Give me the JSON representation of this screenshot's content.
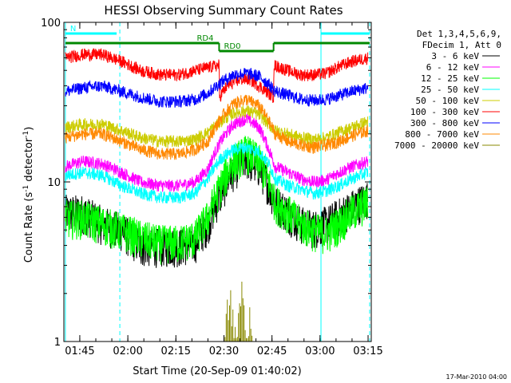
{
  "chart_data": {
    "type": "line",
    "title": "HESSI Observing Summary Count Rates",
    "xlabel": "Start Time (20-Sep-09 01:40:02)",
    "ylabel_main": "Count Rate (s",
    "ylabel_sup1": "-1",
    "ylabel_mid": " detector",
    "ylabel_sup2": "-1",
    "ylabel_end": ")",
    "yscale": "log",
    "ylim": [
      1,
      100
    ],
    "xlim_minutes": [
      100.03,
      196.0
    ],
    "y_ticks": [
      {
        "value": 1,
        "label": "1"
      },
      {
        "value": 10,
        "label": "10"
      },
      {
        "value": 100,
        "label": "100"
      }
    ],
    "x_ticks": [
      {
        "minutes": 105,
        "label": "01:45"
      },
      {
        "minutes": 120,
        "label": "02:00"
      },
      {
        "minutes": 135,
        "label": "02:15"
      },
      {
        "minutes": 150,
        "label": "02:30"
      },
      {
        "minutes": 165,
        "label": "02:45"
      },
      {
        "minutes": 180,
        "label": "03:00"
      },
      {
        "minutes": 195,
        "label": "03:15"
      }
    ],
    "legend_header": [
      "Det 1,3,4,5,6,9,",
      "FDecim 1, Att 0"
    ],
    "series": [
      {
        "name": "3 - 6 keV",
        "color": "#000000",
        "points": [
          [
            100.5,
            6.5
          ],
          [
            106,
            6.5
          ],
          [
            112,
            5.5
          ],
          [
            118,
            5.0
          ],
          [
            124,
            4.0
          ],
          [
            130,
            4.0
          ],
          [
            136,
            4.0
          ],
          [
            141,
            4.2
          ],
          [
            145,
            5.5
          ],
          [
            149,
            8.5
          ],
          [
            153,
            12.0
          ],
          [
            157,
            14.0
          ],
          [
            161,
            12.5
          ],
          [
            164,
            9.5
          ],
          [
            166,
            7.5
          ],
          [
            170,
            6.5
          ],
          [
            174,
            5.5
          ],
          [
            178,
            5.2
          ],
          [
            182,
            5.5
          ],
          [
            186,
            6.2
          ],
          [
            190,
            7.0
          ],
          [
            195,
            8.0
          ]
        ]
      },
      {
        "name": "6 - 12 keV",
        "color": "#ff00ff",
        "points": [
          [
            100.5,
            12.5
          ],
          [
            106,
            13.5
          ],
          [
            112,
            13.0
          ],
          [
            118,
            11.5
          ],
          [
            124,
            10.0
          ],
          [
            130,
            9.5
          ],
          [
            136,
            9.5
          ],
          [
            141,
            10.0
          ],
          [
            145,
            12.0
          ],
          [
            149,
            18.0
          ],
          [
            153,
            23.0
          ],
          [
            157,
            25.0
          ],
          [
            161,
            22.0
          ],
          [
            164,
            16.0
          ],
          [
            166,
            12.5
          ],
          [
            170,
            11.5
          ],
          [
            174,
            10.5
          ],
          [
            178,
            10.0
          ],
          [
            182,
            10.3
          ],
          [
            186,
            11.5
          ],
          [
            190,
            12.5
          ],
          [
            195,
            13.5
          ]
        ]
      },
      {
        "name": "12 - 25 keV",
        "color": "#00ff00",
        "points": [
          [
            100.5,
            6.0
          ],
          [
            106,
            6.0
          ],
          [
            112,
            5.5
          ],
          [
            118,
            5.0
          ],
          [
            124,
            4.5
          ],
          [
            130,
            4.2
          ],
          [
            136,
            4.2
          ],
          [
            141,
            4.5
          ],
          [
            145,
            6.0
          ],
          [
            149,
            9.5
          ],
          [
            153,
            13.5
          ],
          [
            157,
            15.5
          ],
          [
            161,
            13.5
          ],
          [
            164,
            10.0
          ],
          [
            166,
            7.5
          ],
          [
            170,
            6.5
          ],
          [
            174,
            5.5
          ],
          [
            178,
            5.0
          ],
          [
            182,
            4.8
          ],
          [
            186,
            5.5
          ],
          [
            190,
            6.5
          ],
          [
            195,
            7.5
          ]
        ]
      },
      {
        "name": "25 - 50 keV",
        "color": "#00ffff",
        "points": [
          [
            100.5,
            11.0
          ],
          [
            106,
            11.5
          ],
          [
            112,
            11.0
          ],
          [
            118,
            9.5
          ],
          [
            124,
            8.5
          ],
          [
            130,
            8.0
          ],
          [
            136,
            8.0
          ],
          [
            141,
            8.5
          ],
          [
            145,
            10.5
          ],
          [
            149,
            14.0
          ],
          [
            153,
            16.0
          ],
          [
            157,
            16.5
          ],
          [
            161,
            15.5
          ],
          [
            164,
            13.0
          ],
          [
            166,
            10.5
          ],
          [
            170,
            9.5
          ],
          [
            174,
            9.0
          ],
          [
            178,
            8.5
          ],
          [
            182,
            8.8
          ],
          [
            186,
            9.5
          ],
          [
            190,
            10.5
          ],
          [
            195,
            11.5
          ]
        ]
      },
      {
        "name": "50 - 100 keV",
        "color": "#cccc00",
        "points": [
          [
            100.5,
            22.0
          ],
          [
            106,
            23.0
          ],
          [
            112,
            23.0
          ],
          [
            118,
            21.0
          ],
          [
            124,
            19.0
          ],
          [
            130,
            18.0
          ],
          [
            136,
            18.0
          ],
          [
            141,
            18.5
          ],
          [
            145,
            20.5
          ],
          [
            149,
            24.0
          ],
          [
            153,
            27.0
          ],
          [
            157,
            28.0
          ],
          [
            161,
            26.5
          ],
          [
            164,
            23.0
          ],
          [
            166,
            21.0
          ],
          [
            170,
            20.0
          ],
          [
            174,
            19.0
          ],
          [
            178,
            18.5
          ],
          [
            182,
            19.0
          ],
          [
            186,
            20.5
          ],
          [
            190,
            22.0
          ],
          [
            195,
            24.0
          ]
        ]
      },
      {
        "name": "100 - 300 keV",
        "color": "#ff0000",
        "points": [
          [
            100.5,
            60.0
          ],
          [
            106,
            63.0
          ],
          [
            112,
            63.0
          ],
          [
            118,
            57.0
          ],
          [
            124,
            50.0
          ],
          [
            130,
            47.0
          ],
          [
            136,
            47.0
          ],
          [
            141,
            50.0
          ],
          [
            148.5,
            54.0
          ],
          [
            148.6,
            34.0
          ],
          [
            151,
            40.0
          ],
          [
            155,
            44.0
          ],
          [
            158,
            44.0
          ],
          [
            161,
            40.0
          ],
          [
            165.5,
            34.0
          ],
          [
            165.6,
            54.0
          ],
          [
            170,
            50.0
          ],
          [
            174,
            47.0
          ],
          [
            178,
            47.0
          ],
          [
            182,
            48.0
          ],
          [
            186,
            53.0
          ],
          [
            190,
            57.0
          ],
          [
            195,
            60.0
          ]
        ]
      },
      {
        "name": "300 - 800 keV",
        "color": "#0000ff",
        "points": [
          [
            100.5,
            37.0
          ],
          [
            106,
            39.0
          ],
          [
            112,
            40.0
          ],
          [
            118,
            37.0
          ],
          [
            124,
            34.0
          ],
          [
            130,
            32.0
          ],
          [
            136,
            32.0
          ],
          [
            141,
            33.0
          ],
          [
            145,
            36.0
          ],
          [
            149,
            42.0
          ],
          [
            153,
            47.0
          ],
          [
            157,
            48.0
          ],
          [
            161,
            46.0
          ],
          [
            164,
            41.0
          ],
          [
            166,
            37.0
          ],
          [
            170,
            35.0
          ],
          [
            174,
            33.0
          ],
          [
            178,
            32.5
          ],
          [
            182,
            33.0
          ],
          [
            186,
            35.0
          ],
          [
            190,
            37.0
          ],
          [
            195,
            39.0
          ]
        ]
      },
      {
        "name": "800 - 7000 keV",
        "color": "#ff8800",
        "points": [
          [
            100.5,
            19.0
          ],
          [
            106,
            20.0
          ],
          [
            112,
            20.0
          ],
          [
            118,
            18.0
          ],
          [
            124,
            16.0
          ],
          [
            130,
            15.0
          ],
          [
            136,
            15.0
          ],
          [
            141,
            16.0
          ],
          [
            145,
            18.0
          ],
          [
            149,
            25.0
          ],
          [
            153,
            31.0
          ],
          [
            157,
            33.0
          ],
          [
            161,
            30.0
          ],
          [
            164,
            24.0
          ],
          [
            166,
            20.0
          ],
          [
            170,
            18.0
          ],
          [
            174,
            17.0
          ],
          [
            178,
            16.5
          ],
          [
            182,
            17.0
          ],
          [
            186,
            18.0
          ],
          [
            190,
            19.5
          ],
          [
            195,
            21.0
          ]
        ]
      },
      {
        "name": "7000 - 20000 keV",
        "color": "#888800",
        "points": [
          [
            150,
            1.0
          ],
          [
            152,
            2.4
          ],
          [
            154,
            1.0
          ],
          [
            155.5,
            2.3
          ],
          [
            157,
            1.0
          ],
          [
            158,
            1.8
          ],
          [
            159,
            1.0
          ]
        ]
      }
    ],
    "segment_bars": [
      {
        "label": "N",
        "color": "#00ffff",
        "x0": 100.5,
        "x1": 116.5,
        "level": 0.965
      },
      {
        "label": "",
        "color": "#00ffff",
        "x0": 180.3,
        "x1": 195.5,
        "level": 0.965
      },
      {
        "label": "RD4",
        "color": "#008800",
        "x0": 100.5,
        "x1": 148.5,
        "level": 0.935
      },
      {
        "label": "RD0",
        "color": "#008800",
        "x0": 148.5,
        "x1": 165.5,
        "level": 0.91
      },
      {
        "label": "",
        "color": "#008800",
        "x0": 165.5,
        "x1": 195.5,
        "level": 0.935
      }
    ],
    "vertical_lines": [
      {
        "minutes": 100.5,
        "color": "#00ffff",
        "style": "solid"
      },
      {
        "minutes": 117.5,
        "color": "#00ffff",
        "style": "dashed"
      },
      {
        "minutes": 180.3,
        "color": "#00ffff",
        "style": "solid"
      },
      {
        "minutes": 195.5,
        "color": "#00ffff",
        "style": "dashed"
      }
    ],
    "grid": false,
    "legend_position": "right"
  },
  "footer_timestamp": "17-Mar-2010 04:00"
}
